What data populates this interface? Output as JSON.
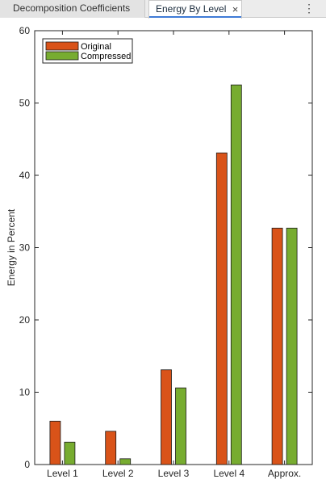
{
  "tabs": [
    {
      "label": "Decomposition Coefficients",
      "active": false
    },
    {
      "label": "Energy By Level",
      "active": true
    }
  ],
  "tab_close_glyph": "×",
  "menu_glyph": "⋮",
  "chart_data": {
    "type": "bar",
    "categories": [
      "Level 1",
      "Level 2",
      "Level 3",
      "Level 4",
      "Approx."
    ],
    "series": [
      {
        "name": "Original",
        "values": [
          6.0,
          4.6,
          13.1,
          43.1,
          32.7
        ],
        "color": "#d95319"
      },
      {
        "name": "Compressed",
        "values": [
          3.1,
          0.8,
          10.6,
          52.5,
          32.7
        ],
        "color": "#77ac30"
      }
    ],
    "ylabel": "Energy in Percent",
    "xlabel": "",
    "ylim": [
      0,
      60
    ],
    "yticks": [
      0,
      10,
      20,
      30,
      40,
      50,
      60
    ],
    "legend": "top-left",
    "grid": false
  }
}
